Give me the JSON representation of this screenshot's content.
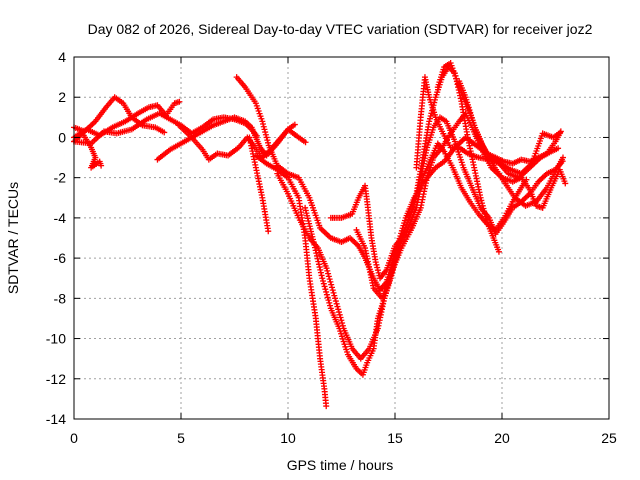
{
  "chart_data": {
    "type": "scatter",
    "title": "Day 082 of 2026, Sidereal Day-to-day VTEC variation (SDTVAR) for receiver joz2",
    "xlabel": "GPS time / hours",
    "ylabel": "SDTVAR / TECUs",
    "xlim": [
      0,
      25
    ],
    "ylim": [
      -14,
      4
    ],
    "xticks": [
      "0",
      "5",
      "10",
      "15",
      "20",
      "25"
    ],
    "yticks": [
      "-14",
      "-12",
      "-10",
      "-8",
      "-6",
      "-4",
      "-2",
      "0",
      "2",
      "4"
    ],
    "grid": true,
    "marker": "+",
    "color": "#ff0000",
    "series": [
      {
        "points": [
          [
            0,
            0.5
          ],
          [
            0.5,
            0.3
          ],
          [
            1,
            0.8
          ],
          [
            1.5,
            1.5
          ],
          [
            1.9,
            2.0
          ],
          [
            2.3,
            1.7
          ],
          [
            2.7,
            1.0
          ],
          [
            3.2,
            0.6
          ],
          [
            3.8,
            0.5
          ],
          [
            4.3,
            0.2
          ]
        ]
      },
      {
        "points": [
          [
            0,
            0.0
          ],
          [
            0.6,
            0.4
          ],
          [
            1.2,
            0.1
          ],
          [
            1.8,
            0.5
          ],
          [
            2.4,
            0.8
          ],
          [
            3.0,
            1.2
          ],
          [
            3.5,
            1.5
          ],
          [
            3.9,
            1.6
          ],
          [
            4.3,
            1.1
          ],
          [
            4.7,
            1.7
          ],
          [
            5.0,
            1.8
          ]
        ]
      },
      {
        "points": [
          [
            0,
            -0.2
          ],
          [
            0.8,
            -0.3
          ],
          [
            1.4,
            0.3
          ],
          [
            2.0,
            0.2
          ],
          [
            2.7,
            0.4
          ],
          [
            3.4,
            0.9
          ],
          [
            4.0,
            1.2
          ],
          [
            4.5,
            0.9
          ],
          [
            5.0,
            0.6
          ],
          [
            5.5,
            0.2
          ],
          [
            6.0,
            0.5
          ],
          [
            6.5,
            0.9
          ],
          [
            7.0,
            1.0
          ],
          [
            7.5,
            0.9
          ],
          [
            8.0,
            0.7
          ],
          [
            8.3,
            0.4
          ],
          [
            8.6,
            0.0
          ]
        ]
      },
      {
        "points": [
          [
            0,
            -0.2
          ],
          [
            0.4,
            0.2
          ],
          [
            0.8,
            -0.5
          ],
          [
            1.0,
            -1.0
          ],
          [
            0.8,
            -1.5
          ],
          [
            1.2,
            -1.2
          ],
          [
            1.3,
            -1.5
          ]
        ]
      },
      {
        "points": [
          [
            3.9,
            -1.1
          ],
          [
            4.5,
            -0.6
          ],
          [
            5.0,
            -0.3
          ],
          [
            5.5,
            0.0
          ],
          [
            6.0,
            0.3
          ],
          [
            6.5,
            0.6
          ],
          [
            7.0,
            0.8
          ],
          [
            7.5,
            1.0
          ],
          [
            8.0,
            0.8
          ],
          [
            8.3,
            0.5
          ],
          [
            8.5,
            0.0
          ],
          [
            8.7,
            -0.5
          ],
          [
            9.0,
            -0.9
          ],
          [
            9.5,
            -0.3
          ],
          [
            10.0,
            0.4
          ],
          [
            10.4,
            0.7
          ]
        ]
      },
      {
        "points": [
          [
            4.9,
            0.6
          ],
          [
            5.5,
            0.0
          ],
          [
            6.0,
            -0.6
          ],
          [
            6.3,
            -1.1
          ],
          [
            6.7,
            -0.8
          ],
          [
            7.2,
            -0.9
          ],
          [
            7.7,
            -0.5
          ],
          [
            8.1,
            0.0
          ],
          [
            8.4,
            -0.4
          ],
          [
            8.8,
            -1.0
          ],
          [
            9.2,
            -0.6
          ],
          [
            9.6,
            -0.1
          ],
          [
            10.0,
            0.4
          ],
          [
            10.5,
            0.0
          ],
          [
            10.9,
            -0.3
          ]
        ]
      },
      {
        "points": [
          [
            7.6,
            3.0
          ],
          [
            8.0,
            2.5
          ],
          [
            8.5,
            1.7
          ],
          [
            8.8,
            0.8
          ],
          [
            9.1,
            -0.4
          ],
          [
            9.5,
            -1.4
          ],
          [
            10.0,
            -1.8
          ],
          [
            10.5,
            -2.0
          ],
          [
            11.0,
            -3.0
          ],
          [
            11.5,
            -4.5
          ],
          [
            12.0,
            -5.0
          ],
          [
            12.5,
            -5.2
          ],
          [
            12.9,
            -5.0
          ],
          [
            13.3,
            -5.4
          ],
          [
            13.6,
            -6.0
          ],
          [
            14.0,
            -7.0
          ],
          [
            14.3,
            -7.6
          ],
          [
            14.6,
            -7.2
          ],
          [
            15.0,
            -5.8
          ],
          [
            15.5,
            -4.0
          ],
          [
            15.9,
            -3.0
          ],
          [
            16.2,
            -2.5
          ],
          [
            16.5,
            -2.0
          ],
          [
            16.9,
            -1.5
          ],
          [
            17.3,
            -1.2
          ],
          [
            17.8,
            -0.5
          ],
          [
            18.3,
            0.0
          ],
          [
            18.8,
            -0.4
          ],
          [
            19.3,
            -0.8
          ],
          [
            19.8,
            -1.2
          ],
          [
            20.3,
            -1.8
          ],
          [
            20.8,
            -2.0
          ],
          [
            21.3,
            -1.5
          ],
          [
            21.8,
            -1.0
          ],
          [
            22.3,
            -0.7
          ],
          [
            22.7,
            -0.5
          ]
        ]
      },
      {
        "points": [
          [
            8.2,
            0.0
          ],
          [
            8.5,
            -1.5
          ],
          [
            8.8,
            -3.0
          ],
          [
            9.1,
            -4.8
          ]
        ]
      },
      {
        "points": [
          [
            8.5,
            -0.9
          ],
          [
            9.0,
            -1.3
          ],
          [
            9.5,
            -1.6
          ],
          [
            10.0,
            -2.0
          ],
          [
            10.5,
            -3.0
          ],
          [
            10.8,
            -5.0
          ],
          [
            11.0,
            -7.0
          ],
          [
            11.3,
            -9.0
          ],
          [
            11.5,
            -11.0
          ],
          [
            11.7,
            -12.5
          ],
          [
            11.8,
            -13.5
          ]
        ]
      },
      {
        "points": [
          [
            9.5,
            -1.8
          ],
          [
            10.0,
            -2.8
          ],
          [
            10.5,
            -4.0
          ],
          [
            11.0,
            -5.0
          ],
          [
            11.4,
            -5.5
          ],
          [
            11.8,
            -6.5
          ],
          [
            12.2,
            -8.0
          ],
          [
            12.6,
            -9.5
          ],
          [
            13.0,
            -10.5
          ],
          [
            13.4,
            -11.0
          ],
          [
            13.8,
            -10.5
          ],
          [
            14.2,
            -9.5
          ],
          [
            14.5,
            -8.0
          ],
          [
            14.9,
            -6.5
          ],
          [
            15.2,
            -5.2
          ],
          [
            15.7,
            -4.0
          ],
          [
            16.1,
            -2.5
          ],
          [
            16.5,
            -0.5
          ],
          [
            16.8,
            0.5
          ],
          [
            17.1,
            1.0
          ],
          [
            17.4,
            0.8
          ],
          [
            17.8,
            -0.2
          ],
          [
            18.2,
            -1.5
          ],
          [
            18.6,
            -2.5
          ],
          [
            19.0,
            -3.5
          ],
          [
            19.4,
            -4.0
          ],
          [
            19.7,
            -4.8
          ],
          [
            20.1,
            -4.2
          ],
          [
            20.5,
            -3.5
          ],
          [
            20.9,
            -3.2
          ],
          [
            21.3,
            -2.8
          ],
          [
            21.7,
            -2.2
          ],
          [
            22.1,
            -1.8
          ],
          [
            22.5,
            -1.6
          ],
          [
            22.9,
            -1.1
          ]
        ]
      },
      {
        "points": [
          [
            10.8,
            -3.5
          ],
          [
            11.2,
            -5.2
          ],
          [
            11.6,
            -7.0
          ],
          [
            12.0,
            -8.5
          ],
          [
            12.4,
            -9.5
          ],
          [
            12.8,
            -10.8
          ],
          [
            13.2,
            -11.5
          ],
          [
            13.5,
            -11.8
          ],
          [
            13.7,
            -11.2
          ],
          [
            14.0,
            -10.5
          ],
          [
            14.2,
            -9.0
          ],
          [
            14.5,
            -8.0
          ],
          [
            14.8,
            -7.0
          ],
          [
            15.2,
            -5.5
          ],
          [
            15.6,
            -4.2
          ],
          [
            16.0,
            -2.8
          ],
          [
            16.3,
            -1.0
          ],
          [
            16.6,
            0.8
          ],
          [
            16.9,
            2.0
          ],
          [
            17.2,
            3.0
          ],
          [
            17.5,
            3.5
          ],
          [
            17.8,
            3.2
          ],
          [
            18.1,
            1.8
          ],
          [
            18.4,
            0.0
          ],
          [
            18.7,
            -1.5
          ],
          [
            19.0,
            -3.0
          ],
          [
            19.3,
            -4.2
          ],
          [
            19.6,
            -5.0
          ],
          [
            19.9,
            -5.8
          ]
        ]
      },
      {
        "points": [
          [
            12.0,
            -4.0
          ],
          [
            12.5,
            -4.0
          ],
          [
            13.0,
            -3.8
          ],
          [
            13.3,
            -3.0
          ],
          [
            13.6,
            -2.4
          ],
          [
            13.7,
            -3.2
          ],
          [
            13.9,
            -5.0
          ],
          [
            14.1,
            -6.2
          ],
          [
            14.3,
            -7.0
          ],
          [
            14.6,
            -6.6
          ],
          [
            15.0,
            -5.4
          ],
          [
            15.5,
            -4.8
          ],
          [
            16.0,
            -3.5
          ],
          [
            16.3,
            -2.0
          ],
          [
            16.7,
            -1.0
          ],
          [
            17.0,
            -0.3
          ],
          [
            17.3,
            -0.7
          ],
          [
            17.7,
            -1.5
          ],
          [
            18.1,
            -2.5
          ],
          [
            18.5,
            -3.2
          ],
          [
            18.9,
            -3.8
          ],
          [
            19.3,
            -4.3
          ],
          [
            19.7,
            -4.6
          ],
          [
            20.1,
            -4.0
          ],
          [
            20.5,
            -3.2
          ],
          [
            20.9,
            -2.5
          ],
          [
            21.2,
            -2.0
          ]
        ]
      },
      {
        "points": [
          [
            13.2,
            -4.6
          ],
          [
            13.6,
            -5.5
          ],
          [
            14.0,
            -7.5
          ],
          [
            14.4,
            -8.0
          ],
          [
            14.8,
            -6.8
          ],
          [
            15.3,
            -5.5
          ],
          [
            15.8,
            -4.5
          ],
          [
            16.2,
            -3.5
          ],
          [
            16.5,
            -2.0
          ],
          [
            16.8,
            -1.0
          ],
          [
            17.2,
            -0.5
          ],
          [
            17.6,
            0.2
          ],
          [
            18.0,
            0.8
          ],
          [
            18.3,
            1.2
          ],
          [
            18.6,
            0.5
          ],
          [
            19.0,
            -0.5
          ],
          [
            19.5,
            -1.5
          ],
          [
            20.0,
            -2.0
          ],
          [
            20.5,
            -2.2
          ],
          [
            20.9,
            -2.0
          ],
          [
            21.3,
            -2.6
          ],
          [
            21.6,
            -3.4
          ],
          [
            21.9,
            -3.5
          ],
          [
            22.3,
            -2.5
          ],
          [
            22.7,
            -1.6
          ],
          [
            23.0,
            -2.4
          ]
        ]
      },
      {
        "points": [
          [
            17.0,
            2.5
          ],
          [
            17.3,
            3.5
          ],
          [
            17.6,
            3.7
          ],
          [
            17.9,
            2.8
          ],
          [
            18.2,
            2.0
          ],
          [
            18.5,
            1.2
          ],
          [
            18.9,
            0.0
          ],
          [
            19.3,
            -0.8
          ],
          [
            19.7,
            -1.0
          ],
          [
            20.1,
            -1.2
          ],
          [
            20.5,
            -1.3
          ],
          [
            20.9,
            -1.1
          ],
          [
            21.3,
            -1.2
          ],
          [
            21.7,
            -1.0
          ],
          [
            22.1,
            -0.8
          ],
          [
            22.5,
            -0.2
          ],
          [
            22.8,
            0.4
          ]
        ]
      },
      {
        "points": [
          [
            16.0,
            -1.5
          ],
          [
            16.2,
            1.0
          ],
          [
            16.4,
            3.0
          ],
          [
            16.6,
            2.0
          ],
          [
            16.9,
            1.0
          ],
          [
            17.2,
            0.3
          ],
          [
            17.6,
            -0.5
          ],
          [
            18.0,
            -0.5
          ],
          [
            18.4,
            -0.8
          ],
          [
            18.9,
            -1.0
          ],
          [
            19.4,
            -1.1
          ],
          [
            19.9,
            -1.3
          ],
          [
            20.4,
            -1.6
          ],
          [
            20.9,
            -1.8
          ],
          [
            21.4,
            -1.3
          ],
          [
            21.9,
            0.2
          ],
          [
            22.4,
            0.0
          ],
          [
            22.8,
            0.3
          ]
        ]
      },
      {
        "points": [
          [
            18.0,
            2.8
          ],
          [
            18.3,
            2.0
          ],
          [
            18.7,
            0.6
          ],
          [
            19.1,
            -0.4
          ],
          [
            19.6,
            -1.4
          ],
          [
            20.1,
            -2.2
          ],
          [
            20.6,
            -3.0
          ],
          [
            21.1,
            -3.4
          ],
          [
            21.6,
            -3.2
          ],
          [
            22.1,
            -2.5
          ],
          [
            22.6,
            -1.5
          ],
          [
            22.9,
            -0.9
          ]
        ]
      }
    ]
  }
}
